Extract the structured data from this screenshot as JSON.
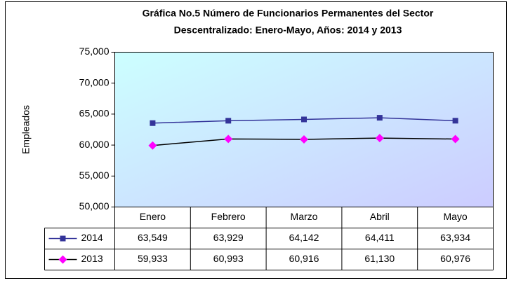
{
  "chart_data": {
    "type": "line",
    "title": [
      "Gráfica No.5 Número de Funcionarios Permanentes del Sector",
      "Descentralizado: Enero-Mayo, Años: 2014 y 2013"
    ],
    "ylabel": "Empleados",
    "categories": [
      "Enero",
      "Febrero",
      "Marzo",
      "Abril",
      "Mayo"
    ],
    "series": [
      {
        "name": "2014",
        "color": "#333399",
        "marker": "square",
        "marker_color": "#333399",
        "values": [
          63549,
          63929,
          64142,
          64411,
          63934
        ],
        "value_labels": [
          "63,549",
          "63,929",
          "64,142",
          "64,411",
          "63,934"
        ]
      },
      {
        "name": "2013",
        "color": "#000000",
        "marker": "diamond",
        "marker_color": "#ff00ff",
        "values": [
          59933,
          60993,
          60916,
          61130,
          60976
        ],
        "value_labels": [
          "59,933",
          "60,993",
          "60,916",
          "61,130",
          "60,976"
        ]
      }
    ],
    "ylim": [
      50000,
      75000
    ],
    "yticks": [
      {
        "value": 50000,
        "label": "50,000"
      },
      {
        "value": 55000,
        "label": "55,000"
      },
      {
        "value": 60000,
        "label": "60,000"
      },
      {
        "value": 65000,
        "label": "65,000"
      },
      {
        "value": 70000,
        "label": "70,000"
      },
      {
        "value": 75000,
        "label": "75,000"
      }
    ],
    "data_table": true
  }
}
